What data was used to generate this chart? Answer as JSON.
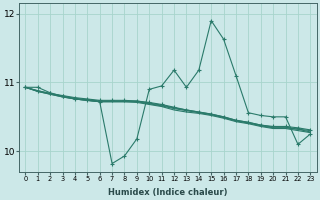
{
  "xlabel": "Humidex (Indice chaleur)",
  "ylabel": "",
  "xlim": [
    -0.5,
    23.5
  ],
  "ylim": [
    9.7,
    12.15
  ],
  "yticks": [
    10,
    11,
    12
  ],
  "xticks": [
    0,
    1,
    2,
    3,
    4,
    5,
    6,
    7,
    8,
    9,
    10,
    11,
    12,
    13,
    14,
    15,
    16,
    17,
    18,
    19,
    20,
    21,
    22,
    23
  ],
  "background_color": "#cce8e8",
  "grid_color": "#a8d4cc",
  "line_color": "#2a7a6a",
  "lines": [
    {
      "y": [
        10.93,
        10.93,
        10.85,
        10.8,
        10.76,
        10.74,
        10.72,
        9.82,
        9.93,
        10.18,
        10.9,
        10.95,
        11.18,
        10.93,
        11.18,
        11.9,
        11.63,
        11.1,
        10.56,
        10.52,
        10.5,
        10.5,
        10.1,
        10.25
      ],
      "marker": true
    },
    {
      "y": [
        10.93,
        10.88,
        10.84,
        10.81,
        10.78,
        10.76,
        10.74,
        10.74,
        10.74,
        10.73,
        10.71,
        10.68,
        10.64,
        10.6,
        10.57,
        10.54,
        10.5,
        10.45,
        10.42,
        10.38,
        10.36,
        10.36,
        10.34,
        10.31
      ],
      "marker": true
    },
    {
      "y": [
        10.93,
        10.88,
        10.84,
        10.8,
        10.77,
        10.75,
        10.73,
        10.73,
        10.73,
        10.73,
        10.7,
        10.67,
        10.63,
        10.6,
        10.57,
        10.54,
        10.5,
        10.45,
        10.42,
        10.38,
        10.35,
        10.35,
        10.32,
        10.3
      ],
      "marker": false
    },
    {
      "y": [
        10.93,
        10.87,
        10.83,
        10.79,
        10.76,
        10.74,
        10.72,
        10.72,
        10.72,
        10.72,
        10.69,
        10.66,
        10.62,
        10.59,
        10.56,
        10.53,
        10.49,
        10.44,
        10.41,
        10.37,
        10.34,
        10.34,
        10.32,
        10.28
      ],
      "marker": false
    },
    {
      "y": [
        10.93,
        10.87,
        10.83,
        10.79,
        10.76,
        10.74,
        10.72,
        10.72,
        10.72,
        10.71,
        10.68,
        10.65,
        10.6,
        10.57,
        10.55,
        10.52,
        10.48,
        10.43,
        10.4,
        10.36,
        10.33,
        10.33,
        10.3,
        10.27
      ],
      "marker": false
    }
  ],
  "figsize": [
    3.2,
    2.0
  ],
  "dpi": 100
}
